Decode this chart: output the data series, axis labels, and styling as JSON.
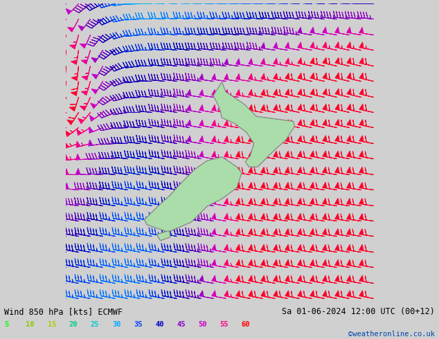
{
  "title_left": "Wind 850 hPa [kts] ECMWF",
  "title_right": "Sa 01-06-2024 12:00 UTC (00+12)",
  "credit": "©weatheronline.co.uk",
  "legend_values": [
    5,
    10,
    15,
    20,
    25,
    30,
    35,
    40,
    45,
    50,
    55,
    60
  ],
  "legend_colors_hex": [
    "#00ff00",
    "#88cc00",
    "#aacc00",
    "#00cc88",
    "#00cccc",
    "#00aaff",
    "#0044ff",
    "#0000cc",
    "#8800cc",
    "#cc00cc",
    "#ff0088",
    "#ff0000"
  ],
  "bg_color": "#d0d0d0",
  "nz_fill": "#aaddaa",
  "nz_outline": "#888888",
  "figsize": [
    6.34,
    4.9
  ],
  "dpi": 100,
  "grid_nx": 26,
  "grid_ny": 20,
  "lon_min": 160.0,
  "lon_max": 185.0,
  "lat_min": -52.0,
  "lat_max": -28.0
}
